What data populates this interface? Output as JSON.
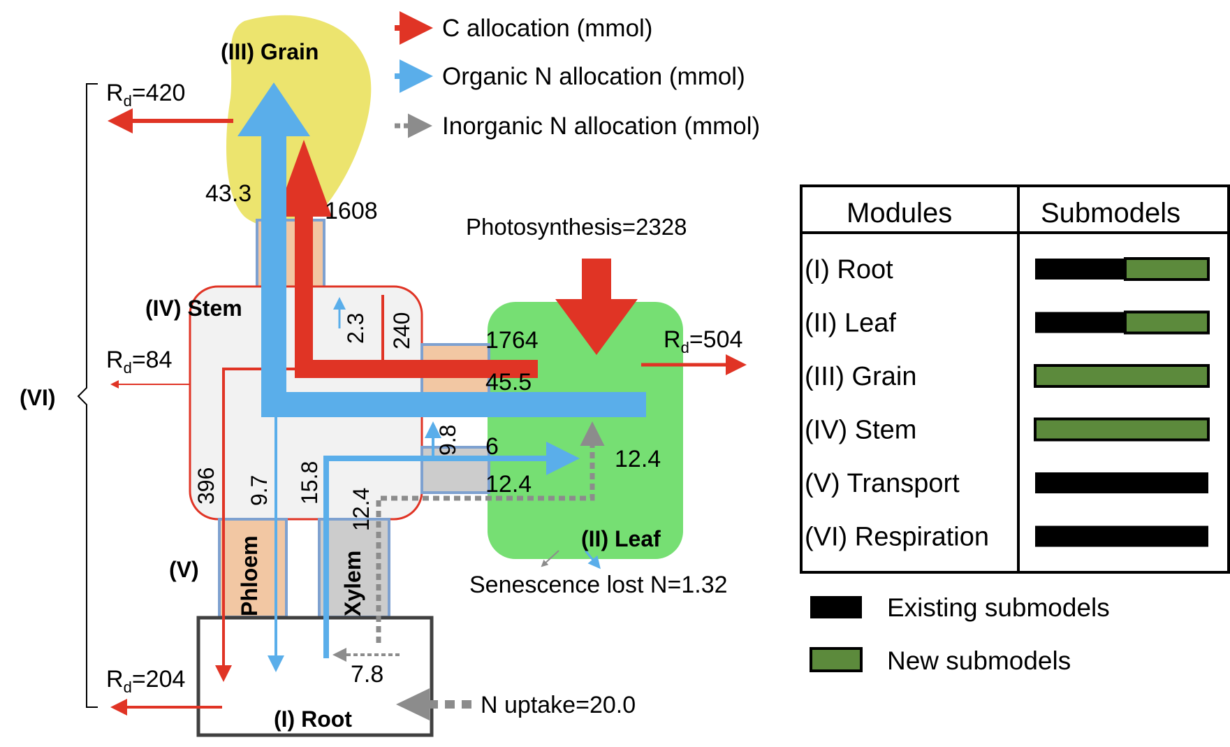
{
  "modules": {
    "grain": "(III) Grain",
    "stem": "(IV) Stem",
    "leaf": "(II) Leaf",
    "root": "(I) Root",
    "transport": "(V)",
    "respiration": "(VI)",
    "phloem": "Phloem",
    "xylem": "Xylem"
  },
  "legend_arrows": {
    "c": "C allocation (mmol)",
    "organic_n": "Organic N allocation (mmol)",
    "inorganic_n": "Inorganic N allocation (mmol)"
  },
  "flows": {
    "grain_n": "43.3",
    "grain_c": "1608",
    "photosynthesis": "Photosynthesis=2328",
    "stem_up_n": "2.3",
    "stem_c_240": "240",
    "leaf_c": "1764",
    "leaf_n": "45.5",
    "n_9_8": "9.8",
    "n_6": "6",
    "inorg_12_4_right": "12.4",
    "inorg_12_4_mid": "12.4",
    "inorg_12_4_vert": "12.4",
    "c_396": "396",
    "n_9_7": "9.7",
    "n_15_8": "15.8",
    "n_7_8": "7.8",
    "n_uptake": "N uptake=20.0",
    "senescence": "Senescence lost N=1.32"
  },
  "respiration": {
    "rd_label": "R",
    "rd_sub": "d",
    "grain": "=420",
    "stem": "=84",
    "leaf": "=504",
    "root": "=204"
  },
  "table": {
    "headers": [
      "Modules",
      "Submodels"
    ],
    "rows": [
      {
        "module": "(I) Root",
        "existing": 0.52,
        "new": 0.48
      },
      {
        "module": "(II) Leaf",
        "existing": 0.52,
        "new": 0.48
      },
      {
        "module": "(III) Grain",
        "existing": 0.0,
        "new": 1.0
      },
      {
        "module": "(IV) Stem",
        "existing": 0.0,
        "new": 1.0
      },
      {
        "module": "(V) Transport",
        "existing": 1.0,
        "new": 0.0
      },
      {
        "module": "(VI) Respiration",
        "existing": 1.0,
        "new": 0.0
      }
    ]
  },
  "key": {
    "existing": "Existing submodels",
    "new": "New submodels"
  },
  "colors": {
    "carbon": "#e03425",
    "organic_n": "#5aaeea",
    "inorganic_n": "#8c8c8c",
    "grain_fill": "#ece46e",
    "leaf_fill": "#76df73",
    "new_submodel": "#5c8a3c",
    "existing_submodel": "#000000",
    "phloem": "#f2c7a3",
    "xylem": "#cccccc"
  }
}
